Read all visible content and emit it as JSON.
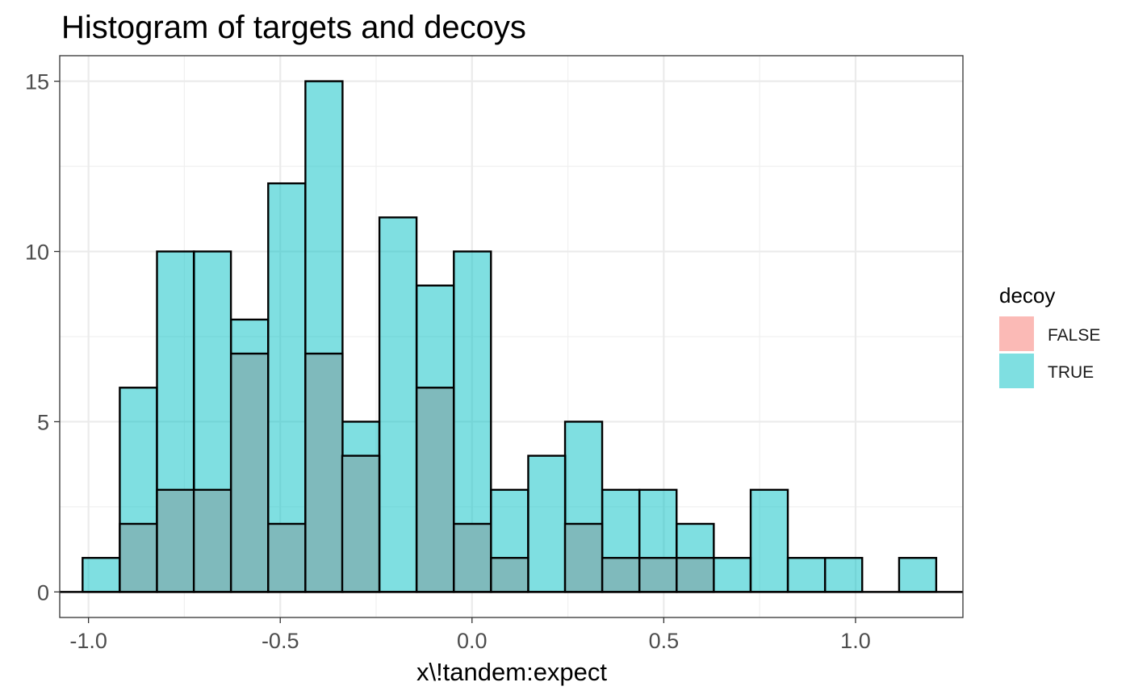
{
  "chart_data": {
    "type": "bar",
    "title": "Histogram of targets and decoys",
    "xlabel": "x\\!tandem:expect",
    "ylabel": "",
    "xlim": [
      -1.075,
      1.28
    ],
    "ylim": [
      -0.75,
      15.75
    ],
    "bin_width": 0.0968,
    "x_ticks": [
      -1.0,
      -0.5,
      0.0,
      0.5,
      1.0
    ],
    "x_tick_labels": [
      "-1.0",
      "-0.5",
      "0.0",
      "0.5",
      "1.0"
    ],
    "y_ticks": [
      0,
      5,
      10,
      15
    ],
    "y_tick_labels": [
      "0",
      "5",
      "10",
      "15"
    ],
    "grid": true,
    "legend_position": "right",
    "legend_title": "decoy",
    "overlap_color": "#7fbabc",
    "series": [
      {
        "name": "TRUE",
        "color": "#00bfc4",
        "bin_centers": [
          -0.967,
          -0.87,
          -0.773,
          -0.677,
          -0.58,
          -0.483,
          -0.386,
          -0.29,
          -0.193,
          -0.096,
          0.001,
          0.098,
          0.195,
          0.291,
          0.388,
          0.485,
          0.582,
          0.678,
          0.775,
          0.872,
          0.969,
          1.066,
          1.162
        ],
        "values": [
          1,
          6,
          10,
          10,
          8,
          12,
          15,
          5,
          11,
          9,
          10,
          3,
          4,
          5,
          3,
          3,
          2,
          1,
          3,
          1,
          1,
          0,
          1
        ]
      },
      {
        "name": "FALSE",
        "color": "#f8766d",
        "bin_centers": [
          -0.967,
          -0.87,
          -0.773,
          -0.677,
          -0.58,
          -0.483,
          -0.386,
          -0.29,
          -0.193,
          -0.096,
          0.001,
          0.098,
          0.195,
          0.291,
          0.388,
          0.485,
          0.582,
          0.678,
          0.775,
          0.872,
          0.969,
          1.066,
          1.162
        ],
        "values": [
          0,
          2,
          3,
          3,
          7,
          2,
          7,
          4,
          0,
          6,
          2,
          1,
          0,
          2,
          1,
          1,
          1,
          0,
          0,
          0,
          0,
          0,
          0
        ]
      }
    ]
  }
}
